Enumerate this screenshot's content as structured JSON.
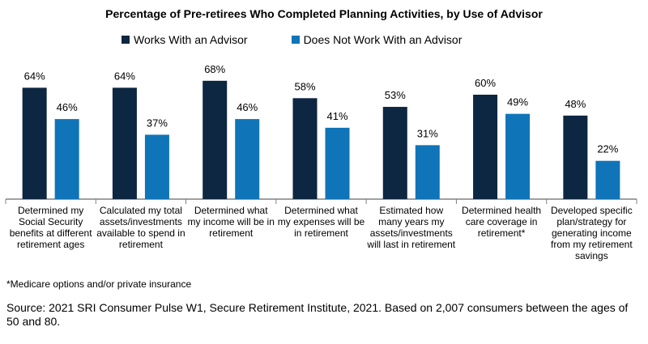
{
  "chart_data": {
    "type": "bar",
    "title": "Percentage of Pre-retirees Who Completed Planning Activities, by Use of Advisor",
    "categories": [
      "Determined my Social Security benefits at different retirement ages",
      "Calculated my total assets/investments available to spend in retirement",
      "Determined what my income will be in retirement",
      "Determined what my expenses will be in retirement",
      "Estimated how many years my assets/investments will last in retirement",
      "Determined health care coverage in retirement*",
      "Developed specific plan/strategy for generating income from my retirement savings"
    ],
    "series": [
      {
        "name": "Works With an Advisor",
        "color": "#0d2641",
        "values": [
          64,
          64,
          68,
          58,
          53,
          60,
          48
        ]
      },
      {
        "name": "Does Not Work With an Advisor",
        "color": "#0f74b8",
        "values": [
          46,
          37,
          46,
          41,
          31,
          49,
          22
        ]
      }
    ],
    "value_suffix": "%",
    "ylim": [
      0,
      70
    ],
    "grid": false,
    "legend_position": "top",
    "axis_color": "#808080"
  },
  "footnote": "*Medicare options and/or private insurance",
  "source": "Source: 2021 SRI Consumer Pulse W1, Secure Retirement Institute, 2021. Based on 2,007 consumers between the ages of 50 and 80."
}
